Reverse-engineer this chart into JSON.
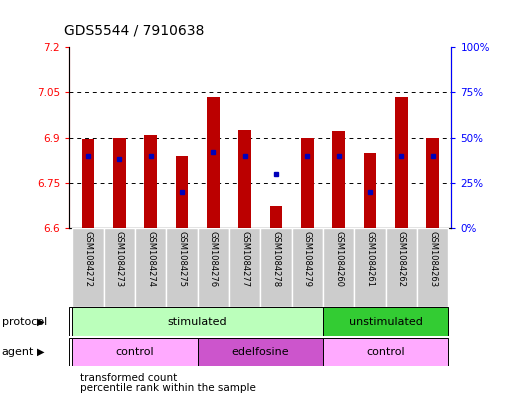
{
  "title": "GDS5544 / 7910638",
  "samples": [
    "GSM1084272",
    "GSM1084273",
    "GSM1084274",
    "GSM1084275",
    "GSM1084276",
    "GSM1084277",
    "GSM1084278",
    "GSM1084279",
    "GSM1084260",
    "GSM1084261",
    "GSM1084262",
    "GSM1084263"
  ],
  "red_values": [
    6.895,
    6.898,
    6.908,
    6.838,
    7.035,
    6.925,
    6.672,
    6.898,
    6.921,
    6.848,
    7.035,
    6.9
  ],
  "blue_pct": [
    40,
    38,
    40,
    20,
    42,
    40,
    30,
    40,
    40,
    20,
    40,
    40
  ],
  "ylim_left": [
    6.6,
    7.2
  ],
  "ylim_right": [
    0,
    100
  ],
  "yticks_left": [
    6.6,
    6.75,
    6.9,
    7.05,
    7.2
  ],
  "yticks_right": [
    0,
    25,
    50,
    75,
    100
  ],
  "ytick_labels_right": [
    "0%",
    "25%",
    "50%",
    "75%",
    "100%"
  ],
  "grid_values": [
    7.05,
    6.9,
    6.75
  ],
  "bar_color": "#bb0000",
  "blue_color": "#0000bb",
  "bar_bottom": 6.6,
  "protocol_groups": [
    {
      "label": "stimulated",
      "start": 0,
      "end": 8,
      "color": "#bbffbb"
    },
    {
      "label": "unstimulated",
      "start": 8,
      "end": 12,
      "color": "#33cc33"
    }
  ],
  "agent_groups": [
    {
      "label": "control",
      "start": 0,
      "end": 4,
      "color": "#ffaaff"
    },
    {
      "label": "edelfosine",
      "start": 4,
      "end": 8,
      "color": "#cc55cc"
    },
    {
      "label": "control",
      "start": 8,
      "end": 12,
      "color": "#ffaaff"
    }
  ],
  "legend_red_label": "transformed count",
  "legend_blue_label": "percentile rank within the sample",
  "sample_box_color": "#cccccc",
  "bar_width": 0.4
}
